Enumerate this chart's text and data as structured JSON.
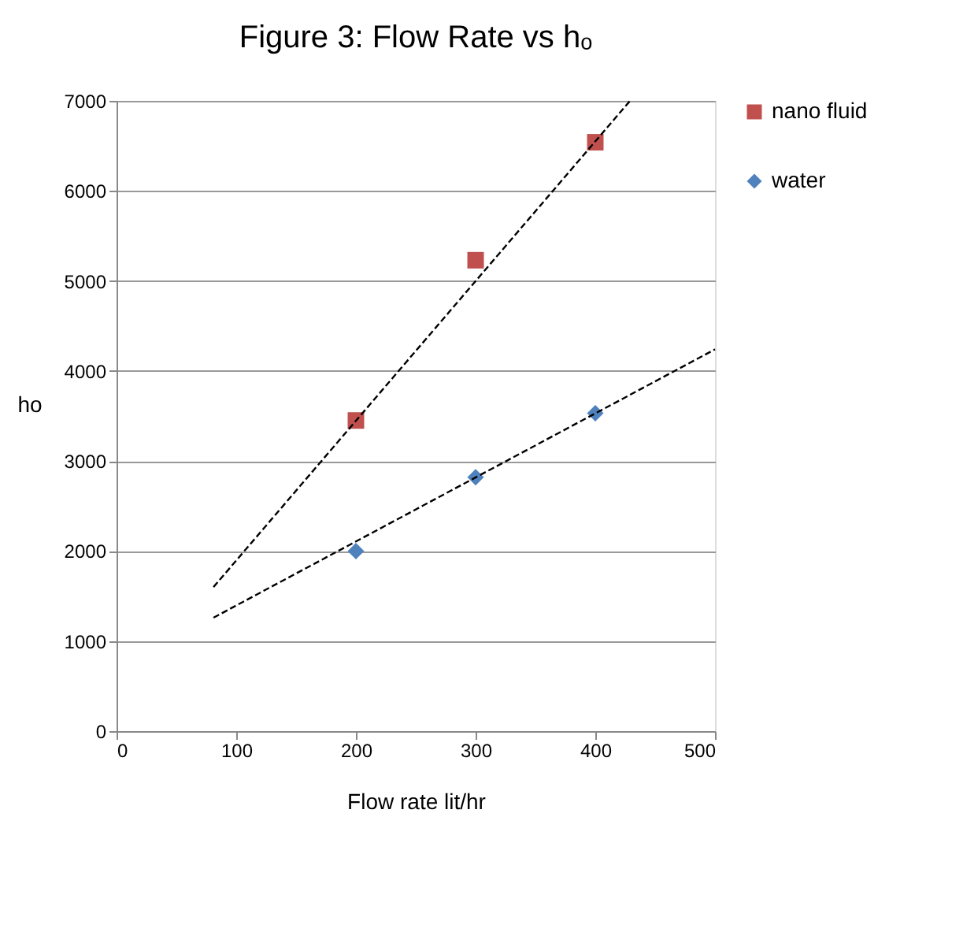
{
  "chart_data": {
    "type": "scatter",
    "title": "Figure 3: Flow Rate vs hₒ",
    "xlabel": "Flow rate lit/hr",
    "ylabel": "ho",
    "xlim": [
      0,
      500
    ],
    "xticks": [
      0,
      100,
      200,
      300,
      400,
      500
    ],
    "ylim": [
      0,
      7000
    ],
    "yticks": [
      0,
      1000,
      2000,
      3000,
      4000,
      5000,
      6000,
      7000
    ],
    "grid": "y",
    "legend": "right",
    "series": [
      {
        "name": "nano fluid",
        "color": "#c0504d",
        "marker": "square",
        "x": [
          200,
          300,
          400
        ],
        "values": [
          3450,
          5230,
          6540
        ]
      },
      {
        "name": "water",
        "color": "#4f81bd",
        "marker": "diamond",
        "x": [
          200,
          300,
          400
        ],
        "values": [
          2000,
          2820,
          3530
        ]
      },
      {
        "type": "line",
        "color": "#000000",
        "line_style": "dashed",
        "x": [
          81,
          429
        ],
        "values": [
          1600,
          7000
        ]
      },
      {
        "type": "line",
        "color": "#000000",
        "line_style": "dashed",
        "x": [
          81,
          500
        ],
        "values": [
          1260,
          4240
        ]
      }
    ]
  }
}
